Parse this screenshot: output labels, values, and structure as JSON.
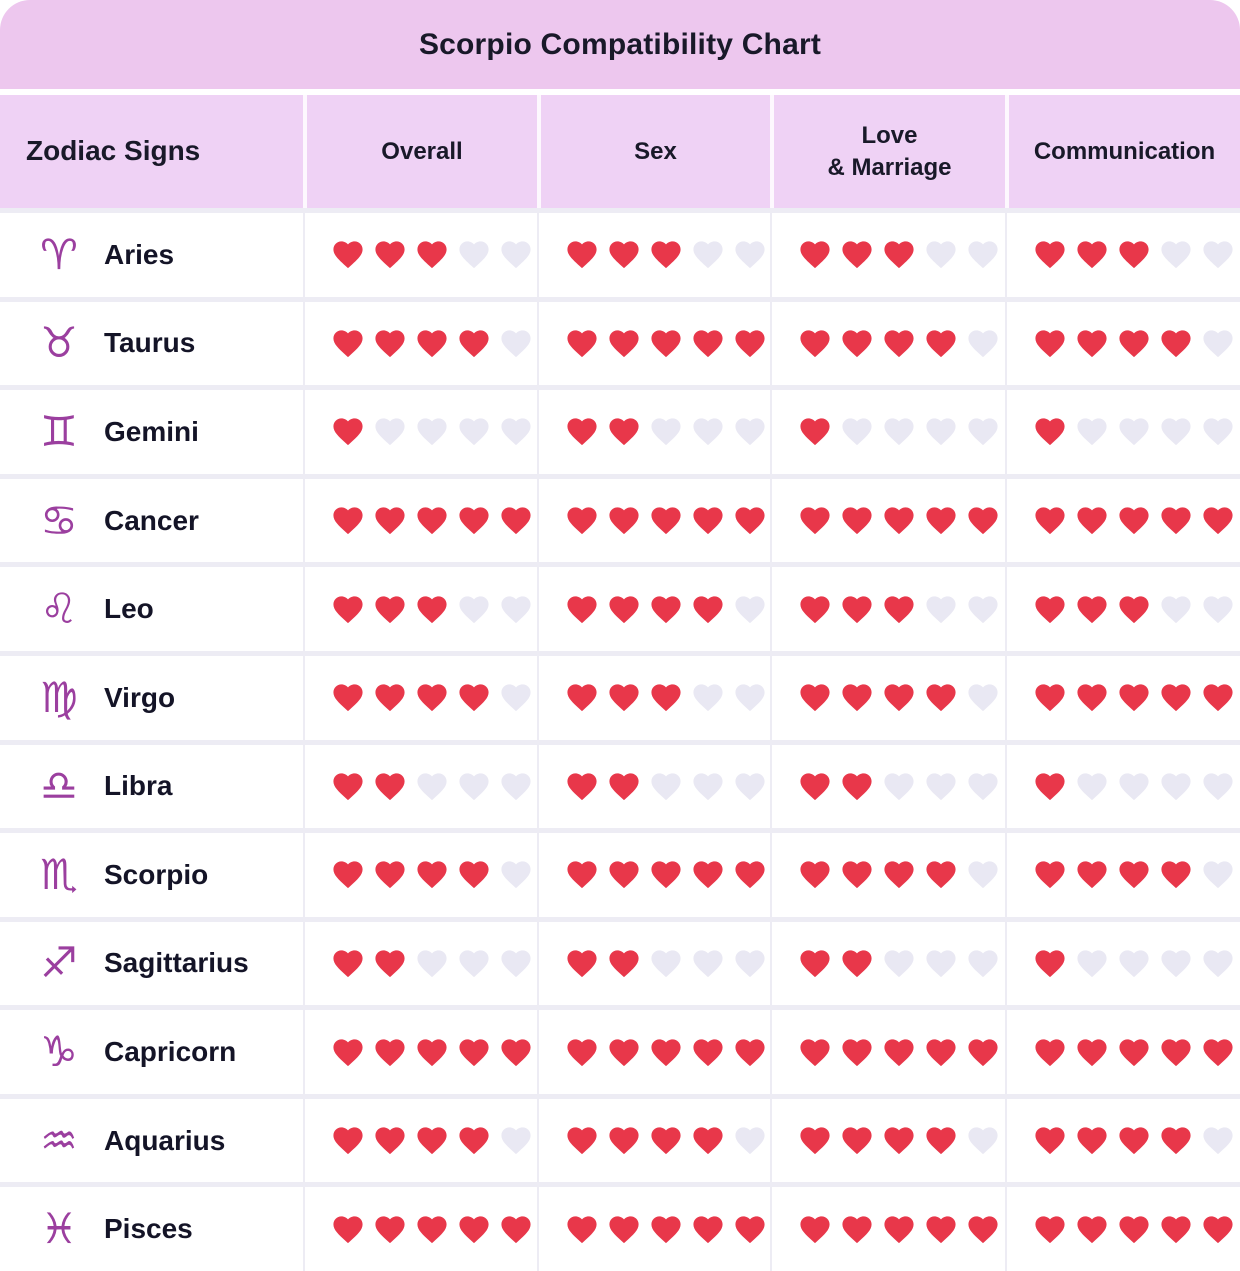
{
  "title": "Scorpio Compatibility Chart",
  "colors": {
    "heart_filled": "#e8374a",
    "heart_empty": "#e9e8f3",
    "icon_purple": "#9b3f9f",
    "title_bg": "#edc7ee",
    "header_bg": "#efd2f5"
  },
  "chart_data": {
    "type": "table",
    "title": "Scorpio Compatibility Chart",
    "columns": [
      "Zodiac Signs",
      "Overall",
      "Sex",
      "Love\n& Marriage",
      "Communication"
    ],
    "rating_categories": [
      "overall",
      "sex",
      "love_marriage",
      "communication"
    ],
    "max_rating": 5,
    "rows": [
      {
        "sign": "Aries",
        "symbol": "♈",
        "overall": 3,
        "sex": 3,
        "love_marriage": 3,
        "communication": 3
      },
      {
        "sign": "Taurus",
        "symbol": "♉",
        "overall": 4,
        "sex": 5,
        "love_marriage": 4,
        "communication": 4
      },
      {
        "sign": "Gemini",
        "symbol": "♊",
        "overall": 1,
        "sex": 2,
        "love_marriage": 1,
        "communication": 1
      },
      {
        "sign": "Cancer",
        "symbol": "♋",
        "overall": 5,
        "sex": 5,
        "love_marriage": 5,
        "communication": 5
      },
      {
        "sign": "Leo",
        "symbol": "♌",
        "overall": 3,
        "sex": 4,
        "love_marriage": 3,
        "communication": 3
      },
      {
        "sign": "Virgo",
        "symbol": "♍",
        "overall": 4,
        "sex": 3,
        "love_marriage": 4,
        "communication": 5
      },
      {
        "sign": "Libra",
        "symbol": "♎",
        "overall": 2,
        "sex": 2,
        "love_marriage": 2,
        "communication": 1
      },
      {
        "sign": "Scorpio",
        "symbol": "♏",
        "overall": 4,
        "sex": 5,
        "love_marriage": 4,
        "communication": 4
      },
      {
        "sign": "Sagittarius",
        "symbol": "♐",
        "overall": 2,
        "sex": 2,
        "love_marriage": 2,
        "communication": 1
      },
      {
        "sign": "Capricorn",
        "symbol": "♑",
        "overall": 5,
        "sex": 5,
        "love_marriage": 5,
        "communication": 5
      },
      {
        "sign": "Aquarius",
        "symbol": "♒",
        "overall": 4,
        "sex": 4,
        "love_marriage": 4,
        "communication": 4
      },
      {
        "sign": "Pisces",
        "symbol": "♓",
        "overall": 5,
        "sex": 5,
        "love_marriage": 5,
        "communication": 5
      }
    ]
  }
}
